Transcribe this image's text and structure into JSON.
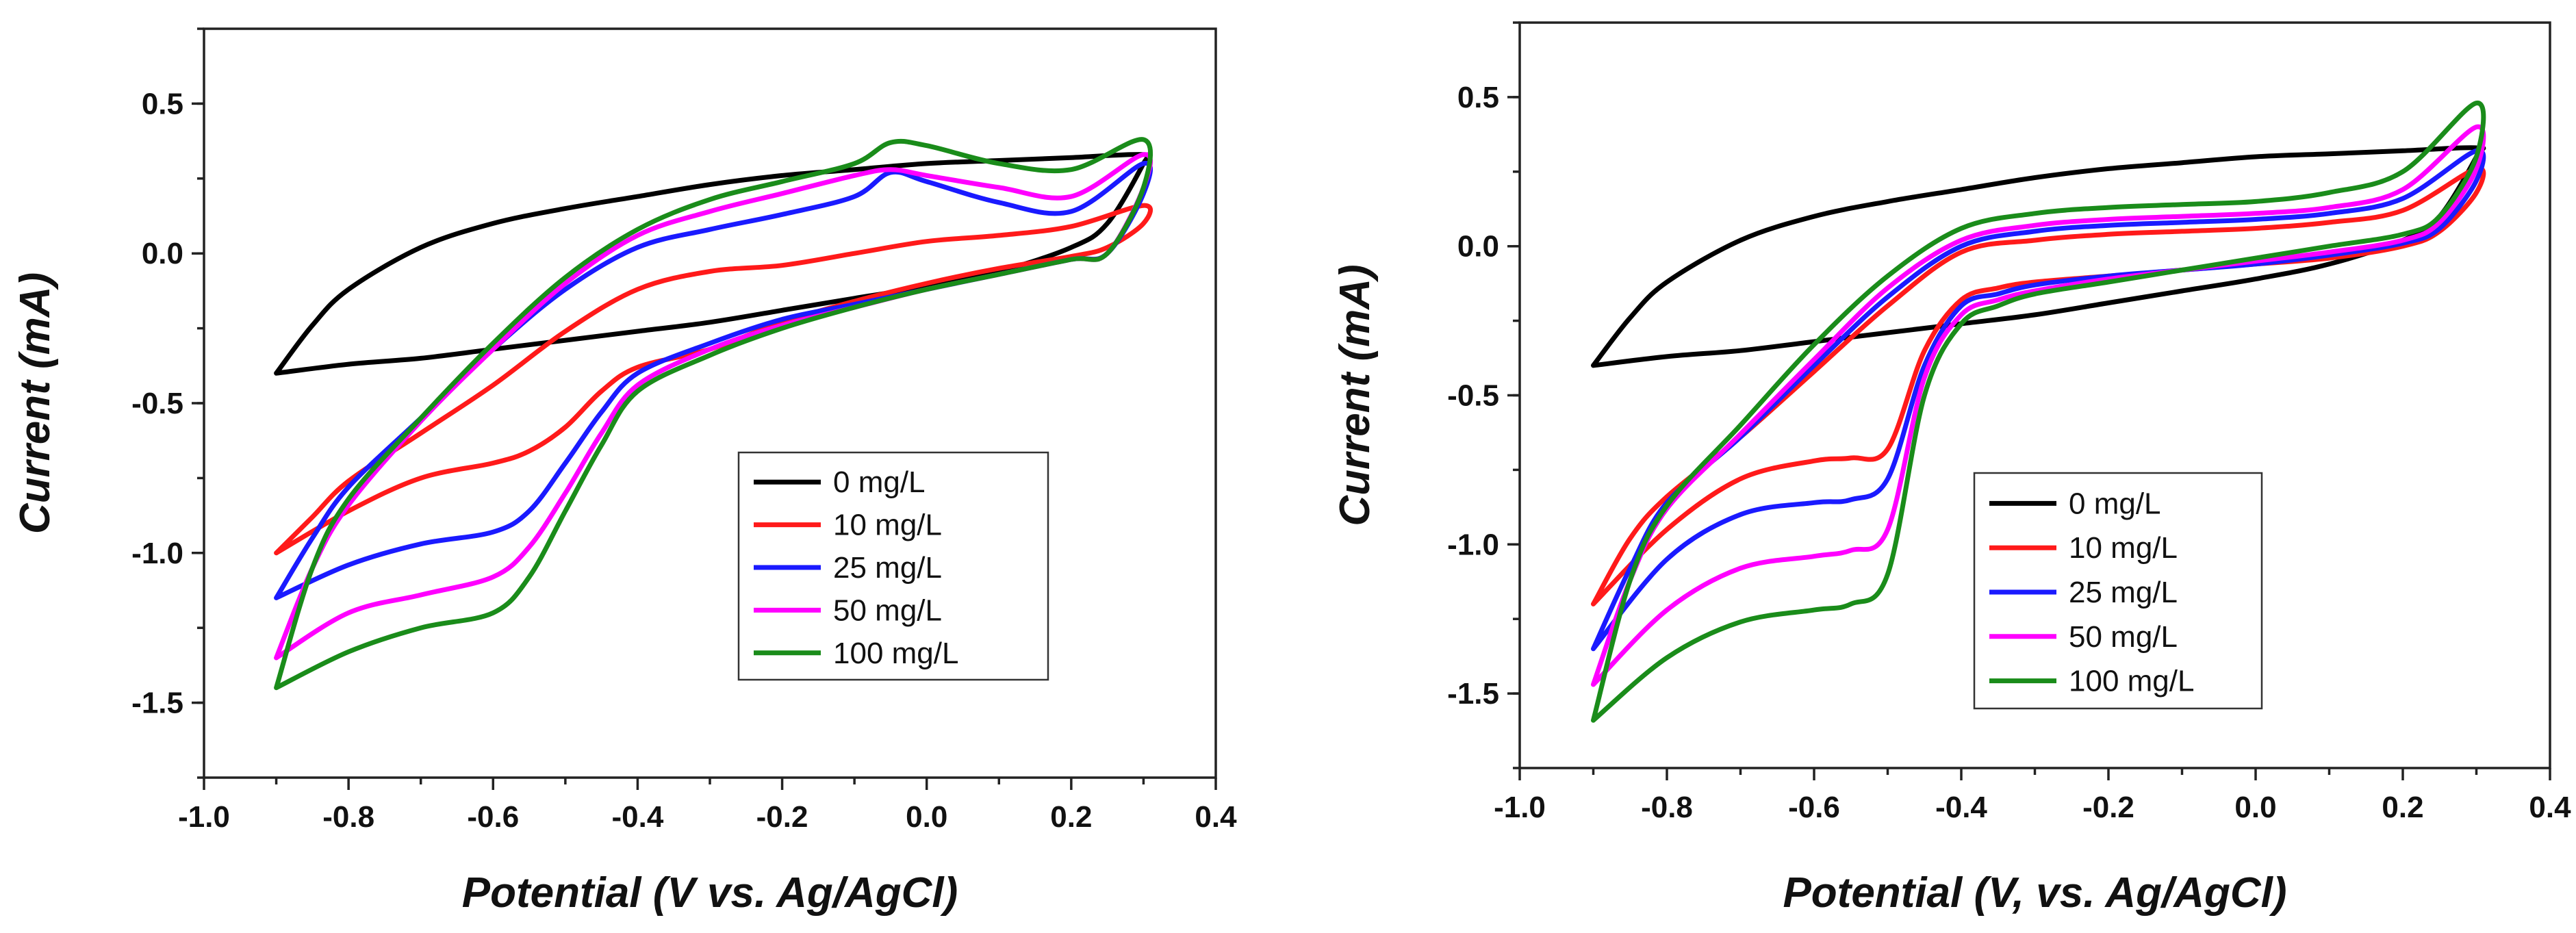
{
  "chart_data": [
    {
      "type": "line",
      "title": "",
      "xlabel": "Potential (V vs. Ag/AgCl)",
      "ylabel": "Current (mA)",
      "xlim": [
        -1.0,
        0.4
      ],
      "ylim": [
        -1.75,
        0.75
      ],
      "xticks": [
        -1.0,
        -0.8,
        -0.6,
        -0.4,
        -0.2,
        0.0,
        0.2,
        0.4
      ],
      "xtick_labels": [
        "-1.0",
        "-0.8",
        "-0.6",
        "-0.4",
        "-0.2",
        "0.0",
        "0.2",
        "0.4"
      ],
      "yticks": [
        0.5,
        0.0,
        -0.5,
        -1.0,
        -1.5
      ],
      "ytick_labels": [
        "0.5",
        "0.0",
        "-0.5",
        "-1.0",
        "-1.5"
      ],
      "legend_position": "lower-right",
      "series": [
        {
          "name": "0 mg/L",
          "color": "#000000",
          "x": [
            -0.9,
            -0.85,
            -0.8,
            -0.7,
            -0.6,
            -0.5,
            -0.4,
            -0.3,
            -0.2,
            -0.1,
            0.0,
            0.1,
            0.2,
            0.3,
            0.3,
            0.25,
            0.2,
            0.1,
            0.0,
            -0.1,
            -0.2,
            -0.3,
            -0.4,
            -0.5,
            -0.6,
            -0.7,
            -0.8,
            -0.9
          ],
          "y": [
            -0.4,
            -0.24,
            -0.12,
            0.02,
            0.1,
            0.15,
            0.19,
            0.23,
            0.26,
            0.28,
            0.3,
            0.31,
            0.32,
            0.33,
            0.3,
            0.1,
            0.02,
            -0.06,
            -0.11,
            -0.15,
            -0.19,
            -0.23,
            -0.26,
            -0.29,
            -0.32,
            -0.35,
            -0.37,
            -0.4
          ]
        },
        {
          "name": "10 mg/L",
          "color": "#ff1a1a",
          "x": [
            -0.9,
            -0.85,
            -0.8,
            -0.7,
            -0.6,
            -0.5,
            -0.4,
            -0.3,
            -0.2,
            -0.1,
            0.0,
            0.1,
            0.2,
            0.3,
            0.3,
            0.25,
            0.2,
            0.1,
            0.0,
            -0.1,
            -0.2,
            -0.3,
            -0.4,
            -0.45,
            -0.5,
            -0.55,
            -0.6,
            -0.7,
            -0.8,
            -0.9
          ],
          "y": [
            -1.0,
            -0.88,
            -0.76,
            -0.6,
            -0.44,
            -0.26,
            -0.12,
            -0.06,
            -0.04,
            0.0,
            0.04,
            0.06,
            0.09,
            0.16,
            0.1,
            0.02,
            -0.01,
            -0.05,
            -0.1,
            -0.16,
            -0.23,
            -0.32,
            -0.38,
            -0.46,
            -0.58,
            -0.66,
            -0.7,
            -0.75,
            -0.86,
            -1.0
          ]
        },
        {
          "name": "25 mg/L",
          "color": "#1a1aff",
          "x": [
            -0.9,
            -0.85,
            -0.8,
            -0.7,
            -0.6,
            -0.5,
            -0.4,
            -0.3,
            -0.2,
            -0.1,
            -0.05,
            0.0,
            0.1,
            0.2,
            0.3,
            0.3,
            0.25,
            0.2,
            0.1,
            0.0,
            -0.1,
            -0.2,
            -0.3,
            -0.4,
            -0.45,
            -0.5,
            -0.55,
            -0.6,
            -0.7,
            -0.8,
            -0.9
          ],
          "y": [
            -1.15,
            -0.95,
            -0.78,
            -0.55,
            -0.32,
            -0.12,
            0.02,
            0.08,
            0.13,
            0.19,
            0.27,
            0.24,
            0.17,
            0.14,
            0.3,
            0.2,
            0.0,
            -0.02,
            -0.07,
            -0.12,
            -0.17,
            -0.22,
            -0.3,
            -0.4,
            -0.53,
            -0.7,
            -0.86,
            -0.93,
            -0.97,
            -1.04,
            -1.15
          ]
        },
        {
          "name": "50 mg/L",
          "color": "#ff00ff",
          "x": [
            -0.9,
            -0.85,
            -0.8,
            -0.7,
            -0.6,
            -0.5,
            -0.4,
            -0.3,
            -0.2,
            -0.1,
            -0.05,
            0.0,
            0.1,
            0.2,
            0.3,
            0.3,
            0.25,
            0.2,
            0.1,
            0.0,
            -0.1,
            -0.2,
            -0.3,
            -0.4,
            -0.45,
            -0.5,
            -0.55,
            -0.6,
            -0.7,
            -0.8,
            -0.9
          ],
          "y": [
            -1.35,
            -1.05,
            -0.84,
            -0.56,
            -0.32,
            -0.1,
            0.06,
            0.14,
            0.2,
            0.26,
            0.28,
            0.26,
            0.22,
            0.19,
            0.33,
            0.22,
            0.0,
            -0.02,
            -0.07,
            -0.12,
            -0.18,
            -0.24,
            -0.32,
            -0.44,
            -0.6,
            -0.8,
            -0.98,
            -1.08,
            -1.14,
            -1.2,
            -1.35
          ]
        },
        {
          "name": "100 mg/L",
          "color": "#1a8c1a",
          "x": [
            -0.9,
            -0.85,
            -0.8,
            -0.7,
            -0.6,
            -0.5,
            -0.4,
            -0.3,
            -0.2,
            -0.1,
            -0.05,
            0.0,
            0.1,
            0.2,
            0.3,
            0.3,
            0.25,
            0.2,
            0.1,
            0.0,
            -0.1,
            -0.2,
            -0.3,
            -0.4,
            -0.45,
            -0.5,
            -0.55,
            -0.6,
            -0.7,
            -0.8,
            -0.9
          ],
          "y": [
            -1.45,
            -1.05,
            -0.82,
            -0.55,
            -0.3,
            -0.08,
            0.08,
            0.18,
            0.24,
            0.3,
            0.37,
            0.36,
            0.3,
            0.28,
            0.38,
            0.22,
            0.0,
            -0.02,
            -0.07,
            -0.12,
            -0.18,
            -0.25,
            -0.34,
            -0.46,
            -0.64,
            -0.86,
            -1.08,
            -1.2,
            -1.25,
            -1.33,
            -1.45
          ]
        }
      ]
    },
    {
      "type": "line",
      "title": "",
      "xlabel": "Potential (V, vs. Ag/AgCl)",
      "ylabel": "Current (mA)",
      "xlim": [
        -1.0,
        0.4
      ],
      "ylim": [
        -1.75,
        0.75
      ],
      "xticks": [
        -1.0,
        -0.8,
        -0.6,
        -0.4,
        -0.2,
        0.0,
        0.2,
        0.4
      ],
      "xtick_labels": [
        "-1.0",
        "-0.8",
        "-0.6",
        "-0.4",
        "-0.2",
        "0.0",
        "0.2",
        "0.4"
      ],
      "yticks": [
        0.5,
        0.0,
        -0.5,
        -1.0,
        -1.5
      ],
      "ytick_labels": [
        "0.5",
        "0.0",
        "-0.5",
        "-1.0",
        "-1.5"
      ],
      "legend_position": "lower-right",
      "series": [
        {
          "name": "0 mg/L",
          "color": "#000000",
          "x": [
            -0.9,
            -0.85,
            -0.8,
            -0.7,
            -0.6,
            -0.5,
            -0.4,
            -0.3,
            -0.2,
            -0.1,
            0.0,
            0.1,
            0.2,
            0.3,
            0.3,
            0.25,
            0.2,
            0.1,
            0.0,
            -0.1,
            -0.2,
            -0.3,
            -0.4,
            -0.5,
            -0.6,
            -0.7,
            -0.8,
            -0.9
          ],
          "y": [
            -0.4,
            -0.24,
            -0.12,
            0.02,
            0.1,
            0.15,
            0.19,
            0.23,
            0.26,
            0.28,
            0.3,
            0.31,
            0.32,
            0.33,
            0.3,
            0.1,
            0.02,
            -0.06,
            -0.11,
            -0.15,
            -0.19,
            -0.23,
            -0.26,
            -0.29,
            -0.32,
            -0.35,
            -0.37,
            -0.4
          ]
        },
        {
          "name": "10 mg/L",
          "color": "#ff1a1a",
          "x": [
            -0.9,
            -0.85,
            -0.8,
            -0.7,
            -0.6,
            -0.5,
            -0.4,
            -0.3,
            -0.2,
            -0.1,
            0.0,
            0.1,
            0.2,
            0.3,
            0.3,
            0.25,
            0.2,
            0.1,
            0.0,
            -0.1,
            -0.2,
            -0.3,
            -0.35,
            -0.4,
            -0.45,
            -0.5,
            -0.55,
            -0.6,
            -0.7,
            -0.8,
            -0.9
          ],
          "y": [
            -1.2,
            -0.98,
            -0.84,
            -0.64,
            -0.42,
            -0.2,
            -0.02,
            0.02,
            0.04,
            0.05,
            0.06,
            0.08,
            0.12,
            0.26,
            0.18,
            0.05,
            0.0,
            -0.04,
            -0.06,
            -0.08,
            -0.1,
            -0.12,
            -0.14,
            -0.18,
            -0.35,
            -0.68,
            -0.71,
            -0.72,
            -0.78,
            -0.95,
            -1.2
          ]
        },
        {
          "name": "25 mg/L",
          "color": "#1a1aff",
          "x": [
            -0.9,
            -0.85,
            -0.8,
            -0.7,
            -0.6,
            -0.5,
            -0.4,
            -0.3,
            -0.2,
            -0.1,
            0.0,
            0.1,
            0.2,
            0.3,
            0.3,
            0.25,
            0.2,
            0.1,
            0.0,
            -0.1,
            -0.2,
            -0.3,
            -0.35,
            -0.4,
            -0.45,
            -0.5,
            -0.55,
            -0.6,
            -0.7,
            -0.8,
            -0.9
          ],
          "y": [
            -1.35,
            -1.08,
            -0.86,
            -0.64,
            -0.4,
            -0.17,
            0.0,
            0.05,
            0.07,
            0.08,
            0.09,
            0.11,
            0.16,
            0.32,
            0.22,
            0.06,
            0.01,
            -0.03,
            -0.06,
            -0.08,
            -0.1,
            -0.13,
            -0.16,
            -0.2,
            -0.4,
            -0.78,
            -0.85,
            -0.86,
            -0.9,
            -1.05,
            -1.35
          ]
        },
        {
          "name": "50 mg/L",
          "color": "#ff00ff",
          "x": [
            -0.9,
            -0.85,
            -0.8,
            -0.7,
            -0.6,
            -0.5,
            -0.4,
            -0.3,
            -0.2,
            -0.1,
            0.0,
            0.1,
            0.2,
            0.3,
            0.3,
            0.25,
            0.2,
            0.1,
            0.0,
            -0.1,
            -0.2,
            -0.3,
            -0.35,
            -0.4,
            -0.45,
            -0.5,
            -0.55,
            -0.6,
            -0.7,
            -0.8,
            -0.9
          ],
          "y": [
            -1.47,
            -1.12,
            -0.88,
            -0.63,
            -0.38,
            -0.14,
            0.02,
            0.07,
            0.09,
            0.1,
            0.11,
            0.13,
            0.19,
            0.4,
            0.26,
            0.08,
            0.02,
            -0.02,
            -0.05,
            -0.08,
            -0.11,
            -0.15,
            -0.18,
            -0.23,
            -0.44,
            -0.95,
            -1.02,
            -1.04,
            -1.08,
            -1.22,
            -1.47
          ]
        },
        {
          "name": "100 mg/L",
          "color": "#1a8c1a",
          "x": [
            -0.9,
            -0.85,
            -0.8,
            -0.7,
            -0.6,
            -0.5,
            -0.4,
            -0.3,
            -0.2,
            -0.1,
            0.0,
            0.1,
            0.2,
            0.3,
            0.3,
            0.25,
            0.2,
            0.1,
            0.0,
            -0.1,
            -0.2,
            -0.3,
            -0.35,
            -0.4,
            -0.45,
            -0.5,
            -0.55,
            -0.6,
            -0.7,
            -0.8,
            -0.9
          ],
          "y": [
            -1.59,
            -1.12,
            -0.87,
            -0.6,
            -0.33,
            -0.1,
            0.06,
            0.11,
            0.13,
            0.14,
            0.15,
            0.18,
            0.25,
            0.48,
            0.3,
            0.1,
            0.04,
            0.0,
            -0.04,
            -0.08,
            -0.12,
            -0.16,
            -0.2,
            -0.26,
            -0.5,
            -1.1,
            -1.2,
            -1.22,
            -1.26,
            -1.38,
            -1.59
          ]
        }
      ]
    }
  ]
}
